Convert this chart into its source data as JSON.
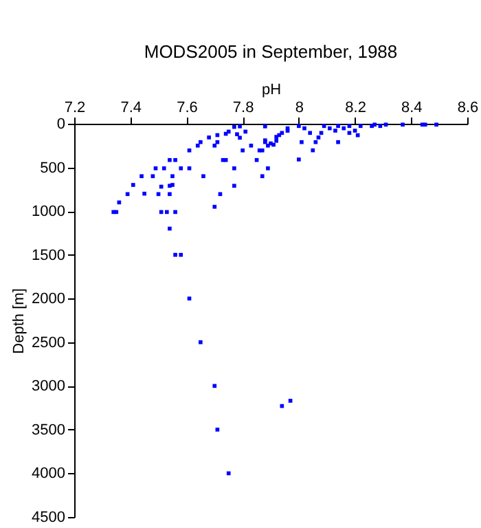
{
  "chart_data": {
    "type": "scatter",
    "title": "MODS2005 in September, 1988",
    "xlabel": "pH",
    "ylabel": "Depth [m]",
    "xlim": [
      7.2,
      8.6
    ],
    "xticks": [
      7.2,
      7.4,
      7.6,
      7.8,
      8,
      8.2,
      8.4,
      8.6
    ],
    "ylim": [
      4500,
      0
    ],
    "yticks": [
      0,
      500,
      1000,
      1500,
      2000,
      2500,
      3000,
      3500,
      4000,
      4500
    ],
    "grid": false,
    "legend": false,
    "marker": "square",
    "series": [
      {
        "color": "#0000ff",
        "x": [
          7.34,
          7.35,
          7.36,
          7.39,
          7.41,
          7.44,
          7.45,
          7.48,
          7.49,
          7.51,
          7.5,
          7.51,
          7.52,
          7.53,
          7.54,
          7.54,
          7.55,
          7.55,
          7.54,
          7.56,
          7.56,
          7.58,
          7.61,
          7.61,
          7.64,
          7.65,
          7.66,
          7.68,
          7.7,
          7.7,
          7.71,
          7.71,
          7.72,
          7.73,
          7.74,
          7.74,
          7.75,
          7.77,
          7.77,
          7.77,
          7.78,
          7.79,
          7.79,
          7.8,
          7.81,
          7.83,
          7.85,
          7.86,
          7.87,
          7.87,
          7.88,
          7.88,
          7.89,
          7.89,
          7.54,
          7.56,
          7.58,
          7.61,
          7.65,
          7.7,
          7.71,
          7.75,
          7.94,
          7.97,
          7.88,
          7.9,
          7.91,
          7.92,
          7.92,
          7.93,
          7.94,
          7.96,
          7.96,
          8.0,
          8.0,
          8.01,
          8.02,
          8.04,
          8.05,
          8.06,
          8.07,
          8.08,
          8.09,
          8.11,
          8.13,
          8.14,
          8.14,
          8.16,
          8.18,
          8.18,
          8.2,
          8.21,
          8.22,
          8.26,
          8.27,
          8.29,
          8.31,
          8.37,
          8.44,
          8.45,
          8.49
        ],
        "values": [
          1010,
          1010,
          900,
          805,
          700,
          600,
          800,
          600,
          510,
          720,
          805,
          1010,
          510,
          1010,
          710,
          805,
          700,
          600,
          415,
          415,
          1010,
          510,
          510,
          305,
          250,
          210,
          600,
          157,
          250,
          950,
          210,
          130,
          805,
          415,
          415,
          115,
          90,
          36,
          510,
          710,
          120,
          160,
          30,
          305,
          90,
          250,
          415,
          305,
          305,
          600,
          30,
          210,
          250,
          510,
          1200,
          1500,
          1500,
          2000,
          2500,
          3000,
          3500,
          4000,
          3230,
          3170,
          190,
          225,
          240,
          195,
          150,
          130,
          105,
          80,
          52,
          409,
          26,
          210,
          52,
          105,
          304,
          210,
          157,
          105,
          26,
          52,
          79,
          210,
          26,
          52,
          26,
          105,
          79,
          131,
          26,
          26,
          10,
          26,
          10,
          10,
          10,
          10,
          10
        ]
      }
    ]
  }
}
